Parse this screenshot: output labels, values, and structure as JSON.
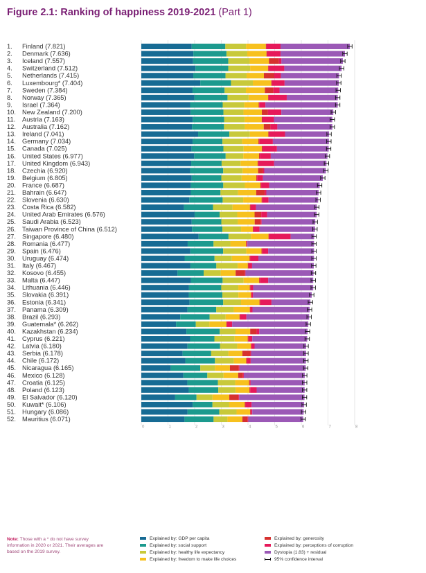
{
  "figure": {
    "title_bold": "Figure 2.1: Ranking of happiness 2019-2021",
    "title_part": "(Part 1)"
  },
  "note": {
    "label": "Note:",
    "text": "Those with a * do not have survey information in 2020 or 2021. Their averages are based on the 2019 survey."
  },
  "legend": {
    "items": [
      {
        "label": "Explained by: GDP per capita",
        "color": "#176b94"
      },
      {
        "label": "Explained by: social support",
        "color": "#1c9a8e"
      },
      {
        "label": "Explained by: healthy life expectancy",
        "color": "#c8c93a"
      },
      {
        "label": "Explained by: freedom to make life choices",
        "color": "#f7c11e"
      },
      {
        "label": "Explained by: generosity",
        "color": "#d6312f"
      },
      {
        "label": "Explained by: perceptions of corruption",
        "color": "#e6195a"
      },
      {
        "label": "Dystopia (1.83) + residual",
        "color": "#9b59b6"
      },
      {
        "label": "95% confidence interval",
        "color": "#111111"
      }
    ]
  },
  "chart_data": {
    "type": "bar",
    "orientation": "horizontal",
    "stacked": true,
    "xlim": [
      0,
      8
    ],
    "xticks": [
      "0",
      "1",
      "2",
      "3",
      "4",
      "5",
      "6",
      "7",
      "8"
    ],
    "grid": true,
    "legend_position": "bottom",
    "series_names": [
      "Explained by: GDP per capita",
      "Explained by: social support",
      "Explained by: healthy life expectancy",
      "Explained by: freedom to make life choices",
      "Explained by: generosity",
      "Explained by: perceptions of corruption",
      "Dystopia (1.83) + residual"
    ],
    "colors": [
      "#176b94",
      "#1c9a8e",
      "#c8c93a",
      "#f7c11e",
      "#d6312f",
      "#e6195a",
      "#9b59b6"
    ],
    "rows": [
      {
        "rank": "1.",
        "label": "Finland (7.821)",
        "score": 7.821,
        "parts": [
          1.89,
          1.26,
          0.78,
          0.74,
          0.02,
          0.53,
          2.6
        ]
      },
      {
        "rank": "2.",
        "label": "Denmark (7.636)",
        "score": 7.636,
        "parts": [
          1.95,
          1.24,
          0.78,
          0.72,
          0.02,
          0.51,
          2.41
        ]
      },
      {
        "rank": "3.",
        "label": "Iceland (7.557)",
        "score": 7.557,
        "parts": [
          1.94,
          1.32,
          0.8,
          0.72,
          0.38,
          0.09,
          2.3
        ]
      },
      {
        "rank": "4.",
        "label": "Switzerland (7.512)",
        "score": 7.512,
        "parts": [
          2.03,
          1.23,
          0.82,
          0.67,
          0.02,
          0.59,
          2.15
        ]
      },
      {
        "rank": "5.",
        "label": "Netherlands (7.415)",
        "score": 7.415,
        "parts": [
          1.95,
          1.21,
          0.79,
          0.65,
          0.39,
          0.25,
          2.18
        ]
      },
      {
        "rank": "6.",
        "label": "Luxembourg* (7.404)",
        "score": 7.404,
        "parts": [
          2.21,
          1.15,
          0.82,
          0.69,
          0.03,
          0.47,
          2.03
        ]
      },
      {
        "rank": "7.",
        "label": "Sweden (7.384)",
        "score": 7.384,
        "parts": [
          1.92,
          1.2,
          0.8,
          0.71,
          0.32,
          0.23,
          2.2
        ]
      },
      {
        "rank": "8.",
        "label": "Norway (7.365)",
        "score": 7.365,
        "parts": [
          1.99,
          1.24,
          0.79,
          0.73,
          0.02,
          0.68,
          1.91
        ]
      },
      {
        "rank": "9.",
        "label": "Israel (7.364)",
        "score": 7.364,
        "parts": [
          1.83,
          1.22,
          0.81,
          0.54,
          0.02,
          0.23,
          2.71
        ]
      },
      {
        "rank": "10.",
        "label": "New Zealand (7.200)",
        "score": 7.2,
        "parts": [
          1.85,
          1.23,
          0.75,
          0.69,
          0.23,
          0.5,
          1.95
        ]
      },
      {
        "rank": "11.",
        "label": "Austria (7.163)",
        "score": 7.163,
        "parts": [
          1.93,
          1.18,
          0.77,
          0.64,
          0.03,
          0.43,
          2.19
        ]
      },
      {
        "rank": "12.",
        "label": "Australia (7.162)",
        "score": 7.162,
        "parts": [
          1.9,
          1.2,
          0.78,
          0.71,
          0.25,
          0.26,
          2.06
        ]
      },
      {
        "rank": "13.",
        "label": "Ireland (7.041)",
        "score": 7.041,
        "parts": [
          2.13,
          1.17,
          0.77,
          0.69,
          0.03,
          0.6,
          1.65
        ]
      },
      {
        "rank": "14.",
        "label": "Germany (7.034)",
        "score": 7.034,
        "parts": [
          1.92,
          1.12,
          0.74,
          0.61,
          0.03,
          0.51,
          2.1
        ]
      },
      {
        "rank": "15.",
        "label": "Canada (7.025)",
        "score": 7.025,
        "parts": [
          1.89,
          1.19,
          0.76,
          0.68,
          0.04,
          0.53,
          1.94
        ]
      },
      {
        "rank": "16.",
        "label": "United States (6.977)",
        "score": 6.977,
        "parts": [
          1.98,
          1.18,
          0.66,
          0.59,
          0.03,
          0.41,
          2.12
        ]
      },
      {
        "rank": "17.",
        "label": "United Kingdom (6.943)",
        "score": 6.943,
        "parts": [
          1.87,
          1.14,
          0.71,
          0.64,
          0.03,
          0.59,
          1.96
        ]
      },
      {
        "rank": "18.",
        "label": "Czechia (6.920)",
        "score": 6.92,
        "parts": [
          1.83,
          1.24,
          0.73,
          0.58,
          0.18,
          0.05,
          2.31
        ]
      },
      {
        "rank": "19.",
        "label": "Belgium (6.805)",
        "score": 6.805,
        "parts": [
          1.89,
          1.11,
          0.76,
          0.55,
          0.03,
          0.22,
          2.24
        ]
      },
      {
        "rank": "20.",
        "label": "France (6.687)",
        "score": 6.687,
        "parts": [
          1.86,
          1.21,
          0.81,
          0.58,
          0.03,
          0.3,
          1.89
        ]
      },
      {
        "rank": "21.",
        "label": "Bahrain (6.647)",
        "score": 6.647,
        "parts": [
          1.86,
          1.11,
          0.66,
          0.68,
          0.32,
          0.06,
          1.96
        ]
      },
      {
        "rank": "22.",
        "label": "Slovenia (6.630)",
        "score": 6.63,
        "parts": [
          1.8,
          1.25,
          0.77,
          0.69,
          0.03,
          0.23,
          1.86
        ]
      },
      {
        "rank": "23.",
        "label": "Costa Rica (6.582)",
        "score": 6.582,
        "parts": [
          1.6,
          1.09,
          0.73,
          0.65,
          0.03,
          0.2,
          2.28
        ]
      },
      {
        "rank": "24.",
        "label": "United Arab Emirates (6.576)",
        "score": 6.576,
        "parts": [
          2.0,
          0.94,
          0.66,
          0.65,
          0.25,
          0.22,
          1.86
        ]
      },
      {
        "rank": "25.",
        "label": "Saudi Arabia (6.523)",
        "score": 6.523,
        "parts": [
          1.89,
          1.11,
          0.62,
          0.63,
          0.22,
          0.04,
          2.01
        ]
      },
      {
        "rank": "26.",
        "label": "Taiwan Province of China (6.512)",
        "score": 6.512,
        "parts": [
          1.9,
          1.14,
          0.7,
          0.44,
          0.03,
          0.22,
          2.08
        ]
      },
      {
        "rank": "27.",
        "label": "Singapore (6.480)",
        "score": 6.48,
        "parts": [
          2.15,
          1.12,
          0.84,
          0.66,
          0.02,
          0.81,
          0.88
        ]
      },
      {
        "rank": "28.",
        "label": "Romania (6.477)",
        "score": 6.477,
        "parts": [
          1.74,
          0.97,
          0.63,
          0.59,
          0.03,
          0.02,
          2.5
        ]
      },
      {
        "rank": "29.",
        "label": "Spain (6.476)",
        "score": 6.476,
        "parts": [
          1.84,
          1.23,
          0.87,
          0.57,
          0.03,
          0.22,
          1.72
        ]
      },
      {
        "rank": "30.",
        "label": "Uruguay (6.474)",
        "score": 6.474,
        "parts": [
          1.62,
          1.12,
          0.65,
          0.66,
          0.03,
          0.3,
          2.08
        ]
      },
      {
        "rank": "31.",
        "label": "Italy (6.467)",
        "score": 6.467,
        "parts": [
          1.84,
          0.97,
          0.8,
          0.38,
          0.03,
          0.13,
          2.31
        ]
      },
      {
        "rank": "32.",
        "label": "Kosovo (6.455)",
        "score": 6.455,
        "parts": [
          1.36,
          0.98,
          0.64,
          0.56,
          0.35,
          0.02,
          2.55
        ]
      },
      {
        "rank": "33.",
        "label": "Malta (6.447)",
        "score": 6.447,
        "parts": [
          1.86,
          1.19,
          0.79,
          0.58,
          0.03,
          0.31,
          1.69
        ]
      },
      {
        "rank": "34.",
        "label": "Lithuania (6.446)",
        "score": 6.446,
        "parts": [
          1.79,
          1.21,
          0.64,
          0.43,
          0.03,
          0.1,
          2.25
        ]
      },
      {
        "rank": "35.",
        "label": "Slovakia (6.391)",
        "score": 6.391,
        "parts": [
          1.78,
          1.26,
          0.6,
          0.47,
          0.03,
          0.05,
          2.2
        ]
      },
      {
        "rank": "36.",
        "label": "Estonia (6.341)",
        "score": 6.341,
        "parts": [
          1.81,
          1.26,
          0.67,
          0.69,
          0.03,
          0.42,
          1.46
        ]
      },
      {
        "rank": "37.",
        "label": "Panama (6.309)",
        "score": 6.309,
        "parts": [
          1.73,
          1.08,
          0.66,
          0.6,
          0.02,
          0.08,
          2.14
        ]
      },
      {
        "rank": "38.",
        "label": "Brazil (6.293)",
        "score": 6.293,
        "parts": [
          1.46,
          1.1,
          0.6,
          0.52,
          0.03,
          0.23,
          2.35
        ]
      },
      {
        "rank": "39.",
        "label": "Guatemala* (6.262)",
        "score": 6.262,
        "parts": [
          1.3,
          0.74,
          0.51,
          0.63,
          0.03,
          0.19,
          2.85
        ]
      },
      {
        "rank": "40.",
        "label": "Kazakhstan (6.234)",
        "score": 6.234,
        "parts": [
          1.69,
          1.25,
          0.59,
          0.55,
          0.24,
          0.1,
          1.81
        ]
      },
      {
        "rank": "41.",
        "label": "Cyprus (6.221)",
        "score": 6.221,
        "parts": [
          1.83,
          0.91,
          0.76,
          0.49,
          0.03,
          0.14,
          2.06
        ]
      },
      {
        "rank": "42.",
        "label": "Latvia (6.180)",
        "score": 6.18,
        "parts": [
          1.73,
          1.22,
          0.64,
          0.51,
          0.03,
          0.11,
          1.93
        ]
      },
      {
        "rank": "43.",
        "label": "Serbia (6.178)",
        "score": 6.178,
        "parts": [
          1.55,
          1.07,
          0.65,
          0.52,
          0.3,
          0.03,
          2.06
        ]
      },
      {
        "rank": "44.",
        "label": "Chile (6.172)",
        "score": 6.172,
        "parts": [
          1.65,
          1.11,
          0.71,
          0.46,
          0.04,
          0.13,
          2.07
        ]
      },
      {
        "rank": "45.",
        "label": "Nicaragua (6.165)",
        "score": 6.165,
        "parts": [
          1.1,
          1.11,
          0.55,
          0.56,
          0.33,
          0.03,
          2.48
        ]
      },
      {
        "rank": "46.",
        "label": "Mexico (6.128)",
        "score": 6.128,
        "parts": [
          1.58,
          0.9,
          0.61,
          0.55,
          0.18,
          0.03,
          2.29
        ]
      },
      {
        "rank": "47.",
        "label": "Croatia (6.125)",
        "score": 6.125,
        "parts": [
          1.73,
          1.15,
          0.65,
          0.52,
          0.03,
          0.03,
          2.03
        ]
      },
      {
        "rank": "48.",
        "label": "Poland (6.123)",
        "score": 6.123,
        "parts": [
          1.78,
          1.11,
          0.65,
          0.52,
          0.03,
          0.24,
          1.8
        ]
      },
      {
        "rank": "49.",
        "label": "El Salvador (6.120)",
        "score": 6.12,
        "parts": [
          1.27,
          0.8,
          0.6,
          0.63,
          0.34,
          0.03,
          2.45
        ]
      },
      {
        "rank": "50.",
        "label": "Kuwait* (6.106)",
        "score": 6.106,
        "parts": [
          1.93,
          0.74,
          0.63,
          0.58,
          0.03,
          0.23,
          1.97
        ]
      },
      {
        "rank": "51.",
        "label": "Hungary (6.086)",
        "score": 6.086,
        "parts": [
          1.74,
          1.19,
          0.65,
          0.51,
          0.03,
          0.05,
          1.93
        ]
      },
      {
        "rank": "52.",
        "label": "Mauritius (6.071)",
        "score": 6.071,
        "parts": [
          1.62,
          1.09,
          0.52,
          0.56,
          0.19,
          0.03,
          2.06
        ]
      }
    ]
  }
}
